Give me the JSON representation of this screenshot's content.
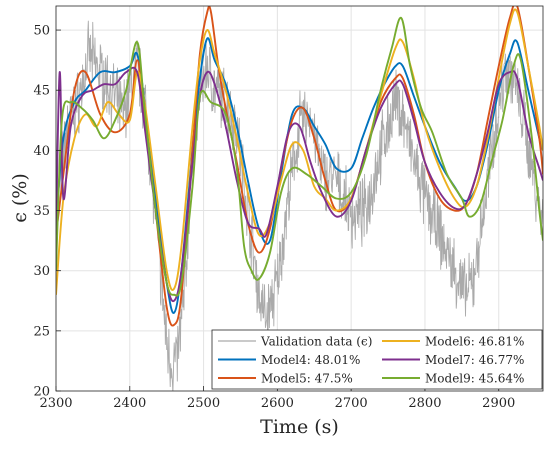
{
  "chart_data": {
    "type": "line",
    "title": "",
    "xlabel": "Time (s)",
    "ylabel": "ϵ (%)",
    "xlim": [
      2300,
      2960
    ],
    "ylim": [
      20,
      52
    ],
    "xticks": [
      2300,
      2400,
      2500,
      2600,
      2700,
      2800,
      2900
    ],
    "yticks": [
      20,
      25,
      30,
      35,
      40,
      45,
      50
    ],
    "grid": true,
    "legend_position": "bottom-right",
    "legend_columns": 2,
    "series": [
      {
        "name": "Validation data (ϵ)",
        "color": "#aaaaaa",
        "noisy": true,
        "x": [
          2300,
          2315,
          2330,
          2345,
          2360,
          2375,
          2390,
          2400,
          2410,
          2420,
          2430,
          2440,
          2450,
          2458,
          2465,
          2475,
          2485,
          2495,
          2505,
          2515,
          2530,
          2545,
          2560,
          2575,
          2585,
          2600,
          2615,
          2630,
          2645,
          2660,
          2680,
          2700,
          2720,
          2740,
          2760,
          2770,
          2785,
          2800,
          2820,
          2840,
          2855,
          2865,
          2880,
          2895,
          2910,
          2920,
          2935,
          2950,
          2960
        ],
        "y": [
          35,
          42,
          44,
          48,
          46.5,
          45,
          43,
          45,
          47,
          44,
          38,
          31,
          24,
          22,
          23,
          29,
          40,
          45,
          47,
          45,
          44,
          42,
          35,
          28,
          26,
          29,
          36,
          42,
          43,
          38,
          37.5,
          34.5,
          35,
          40,
          44,
          43,
          39,
          36,
          33,
          30,
          28,
          29,
          35,
          42,
          47,
          46,
          42,
          37,
          34
        ]
      },
      {
        "name": "Model4: 48.01%",
        "color": "#0072bd",
        "x": [
          2300,
          2310,
          2325,
          2340,
          2360,
          2380,
          2400,
          2410,
          2420,
          2435,
          2450,
          2460,
          2470,
          2485,
          2495,
          2505,
          2515,
          2530,
          2545,
          2560,
          2575,
          2590,
          2605,
          2620,
          2635,
          2650,
          2665,
          2680,
          2700,
          2715,
          2730,
          2745,
          2760,
          2770,
          2785,
          2800,
          2820,
          2840,
          2855,
          2870,
          2885,
          2900,
          2915,
          2925,
          2940,
          2955,
          2960
        ],
        "y": [
          34,
          41,
          44,
          45,
          46.5,
          46.5,
          47,
          48,
          44,
          36,
          29,
          26.5,
          30,
          40,
          46,
          49.3,
          47.5,
          45.5,
          42,
          37.5,
          33.5,
          32.5,
          38,
          43,
          43.5,
          42,
          40.5,
          38.5,
          38.5,
          41,
          43.5,
          45.5,
          47,
          47,
          44.5,
          42,
          39,
          37,
          35.8,
          37,
          40.5,
          45,
          48,
          49,
          45,
          41,
          40
        ]
      },
      {
        "name": "Model5: 47.5%",
        "color": "#d95319",
        "x": [
          2300,
          2310,
          2325,
          2340,
          2360,
          2380,
          2400,
          2410,
          2420,
          2435,
          2450,
          2460,
          2470,
          2485,
          2495,
          2505,
          2510,
          2520,
          2530,
          2545,
          2560,
          2575,
          2590,
          2605,
          2620,
          2635,
          2650,
          2665,
          2680,
          2700,
          2720,
          2740,
          2760,
          2770,
          2785,
          2800,
          2820,
          2840,
          2855,
          2870,
          2885,
          2900,
          2915,
          2925,
          2940,
          2955,
          2960
        ],
        "y": [
          33,
          38,
          45,
          46.5,
          43,
          41.5,
          43,
          47.5,
          43,
          35,
          27,
          25.5,
          28,
          40,
          48,
          51.5,
          51.5,
          47,
          43.5,
          39,
          34,
          31.5,
          33.5,
          38.5,
          42.5,
          43.5,
          41,
          37.5,
          35,
          36,
          40,
          44,
          46,
          46,
          43,
          39,
          36,
          35,
          35.5,
          38,
          42.5,
          47,
          51,
          52,
          47,
          41,
          38
        ]
      },
      {
        "name": "Model6: 46.81%",
        "color": "#edb120",
        "x": [
          2300,
          2310,
          2325,
          2340,
          2355,
          2370,
          2385,
          2400,
          2410,
          2420,
          2435,
          2450,
          2460,
          2470,
          2485,
          2495,
          2505,
          2515,
          2530,
          2545,
          2560,
          2575,
          2590,
          2605,
          2620,
          2635,
          2650,
          2665,
          2680,
          2700,
          2720,
          2740,
          2760,
          2770,
          2785,
          2800,
          2820,
          2840,
          2855,
          2870,
          2885,
          2900,
          2915,
          2925,
          2940,
          2955,
          2960
        ],
        "y": [
          28,
          36,
          41,
          43,
          42,
          44,
          43,
          42.5,
          46.5,
          44,
          37,
          30,
          28.5,
          32,
          42,
          47.5,
          50,
          48,
          45,
          41,
          36.5,
          33,
          34,
          37.5,
          40.5,
          40,
          37,
          36,
          35,
          36,
          40,
          44.5,
          48.5,
          49,
          46,
          42,
          38.5,
          36,
          35.3,
          37,
          41,
          46,
          50.5,
          51.5,
          47,
          42,
          40
        ]
      },
      {
        "name": "Model7: 46.77%",
        "color": "#7e2f8e",
        "x": [
          2300,
          2305,
          2310,
          2320,
          2335,
          2350,
          2365,
          2380,
          2395,
          2410,
          2420,
          2435,
          2450,
          2460,
          2470,
          2485,
          2495,
          2505,
          2515,
          2530,
          2545,
          2560,
          2575,
          2585,
          2600,
          2615,
          2630,
          2645,
          2660,
          2680,
          2700,
          2720,
          2740,
          2760,
          2770,
          2785,
          2800,
          2820,
          2840,
          2855,
          2870,
          2885,
          2900,
          2915,
          2925,
          2940,
          2955,
          2960
        ],
        "y": [
          33,
          46.5,
          36,
          42,
          44.5,
          45,
          45.5,
          45.5,
          46.5,
          46.5,
          42,
          35,
          29,
          27.5,
          30,
          39,
          44.5,
          46.5,
          45.5,
          42,
          37.5,
          34,
          33.5,
          33,
          37,
          41.5,
          42,
          39,
          36.5,
          34.5,
          35.8,
          40,
          43.5,
          45.5,
          45.5,
          42.5,
          39,
          36.5,
          35.2,
          35.5,
          38,
          41.5,
          45.5,
          46.5,
          46,
          41.5,
          38.5,
          37.5
        ]
      },
      {
        "name": "Model9: 45.64%",
        "color": "#77ac30",
        "x": [
          2300,
          2308,
          2320,
          2335,
          2350,
          2365,
          2380,
          2395,
          2410,
          2420,
          2435,
          2450,
          2460,
          2470,
          2485,
          2495,
          2510,
          2530,
          2545,
          2555,
          2565,
          2575,
          2590,
          2605,
          2620,
          2640,
          2660,
          2680,
          2700,
          2720,
          2740,
          2755,
          2768,
          2780,
          2795,
          2810,
          2830,
          2850,
          2860,
          2875,
          2890,
          2905,
          2920,
          2930,
          2945,
          2955,
          2960
        ],
        "y": [
          30,
          42.5,
          44,
          43.5,
          42.5,
          41,
          42.5,
          45,
          49,
          43.5,
          35,
          29,
          28,
          29,
          37,
          44.5,
          44,
          43,
          38.5,
          32,
          30,
          29.3,
          31.5,
          36.5,
          38.5,
          38,
          37,
          36,
          36.5,
          39.5,
          45,
          48.5,
          51,
          47,
          43.5,
          41.5,
          38,
          36,
          34.5,
          35.5,
          39,
          42.5,
          47,
          47.5,
          41,
          35,
          32.5
        ]
      }
    ]
  }
}
